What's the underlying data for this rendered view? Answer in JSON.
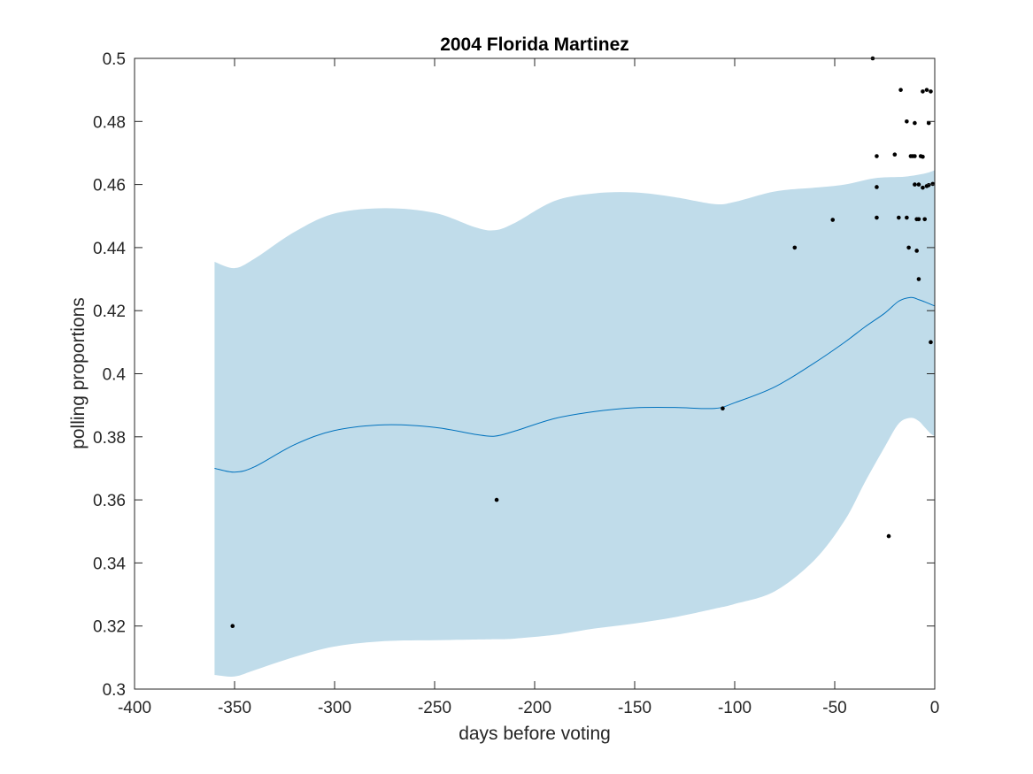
{
  "chart_data": {
    "type": "line",
    "title": "2004 Florida Martinez",
    "xlabel": "days before voting",
    "ylabel": "polling proportions",
    "xlim": [
      -400,
      0
    ],
    "ylim": [
      0.3,
      0.5
    ],
    "xticks": [
      -400,
      -350,
      -300,
      -250,
      -200,
      -150,
      -100,
      -50,
      0
    ],
    "yticks": [
      0.3,
      0.32,
      0.34,
      0.36,
      0.38,
      0.4,
      0.42,
      0.44,
      0.46,
      0.48,
      0.5
    ],
    "xtick_labels": [
      "-400",
      "-350",
      "-300",
      "-250",
      "-200",
      "-150",
      "-100",
      "-50",
      "0"
    ],
    "ytick_labels": [
      "0.3",
      "0.32",
      "0.34",
      "0.36",
      "0.38",
      "0.4",
      "0.42",
      "0.44",
      "0.46",
      "0.48",
      "0.5"
    ],
    "grid": false,
    "colors": {
      "mean": "#0072BD",
      "band": "#C0DCEA",
      "points": "#000000",
      "axes": "#262626"
    },
    "mean": {
      "x": [
        -360,
        -350,
        -340,
        -320,
        -300,
        -275,
        -250,
        -230,
        -220,
        -210,
        -190,
        -170,
        -150,
        -130,
        -110,
        -100,
        -80,
        -60,
        -45,
        -35,
        -25,
        -18,
        -12,
        -8,
        -5,
        -2,
        0
      ],
      "y": [
        0.37,
        0.3688,
        0.3705,
        0.3775,
        0.382,
        0.3838,
        0.383,
        0.3808,
        0.3802,
        0.3818,
        0.3858,
        0.388,
        0.3892,
        0.3893,
        0.389,
        0.3908,
        0.3958,
        0.4035,
        0.41,
        0.4148,
        0.4192,
        0.423,
        0.4242,
        0.4235,
        0.4228,
        0.422,
        0.4215
      ]
    },
    "band_upper": {
      "x": [
        -360,
        -350,
        -340,
        -320,
        -300,
        -275,
        -250,
        -230,
        -220,
        -210,
        -190,
        -170,
        -150,
        -130,
        -110,
        -100,
        -80,
        -60,
        -45,
        -30,
        -15,
        -5,
        0
      ],
      "y": [
        0.4355,
        0.4335,
        0.4365,
        0.445,
        0.4508,
        0.4525,
        0.451,
        0.4465,
        0.4455,
        0.4478,
        0.4548,
        0.4572,
        0.4575,
        0.456,
        0.4538,
        0.4545,
        0.4578,
        0.459,
        0.46,
        0.462,
        0.4625,
        0.4635,
        0.4645
      ]
    },
    "band_lower": {
      "x": [
        -360,
        -350,
        -340,
        -320,
        -300,
        -275,
        -250,
        -230,
        -220,
        -210,
        -190,
        -170,
        -150,
        -130,
        -110,
        -100,
        -80,
        -60,
        -45,
        -35,
        -25,
        -18,
        -12,
        -8,
        -5,
        -2,
        0
      ],
      "y": [
        0.3045,
        0.304,
        0.306,
        0.3102,
        0.3135,
        0.3152,
        0.3155,
        0.3157,
        0.3158,
        0.316,
        0.3172,
        0.3192,
        0.3208,
        0.3228,
        0.3255,
        0.327,
        0.331,
        0.341,
        0.3535,
        0.3655,
        0.3768,
        0.3842,
        0.386,
        0.385,
        0.383,
        0.381,
        0.3802
      ]
    },
    "points": [
      {
        "x": -351,
        "y": 0.32
      },
      {
        "x": -219,
        "y": 0.36
      },
      {
        "x": -106,
        "y": 0.389
      },
      {
        "x": -70,
        "y": 0.44
      },
      {
        "x": -51,
        "y": 0.4488
      },
      {
        "x": -31,
        "y": 0.5
      },
      {
        "x": -29,
        "y": 0.469
      },
      {
        "x": -29,
        "y": 0.4592
      },
      {
        "x": -29,
        "y": 0.4495
      },
      {
        "x": -23,
        "y": 0.3485
      },
      {
        "x": -20,
        "y": 0.4695
      },
      {
        "x": -18,
        "y": 0.4495
      },
      {
        "x": -17,
        "y": 0.49
      },
      {
        "x": -14,
        "y": 0.48
      },
      {
        "x": -14,
        "y": 0.4495
      },
      {
        "x": -13,
        "y": 0.44
      },
      {
        "x": -12,
        "y": 0.469
      },
      {
        "x": -11,
        "y": 0.469
      },
      {
        "x": -10,
        "y": 0.4795
      },
      {
        "x": -10,
        "y": 0.46
      },
      {
        "x": -10,
        "y": 0.469
      },
      {
        "x": -9,
        "y": 0.449
      },
      {
        "x": -9,
        "y": 0.439
      },
      {
        "x": -8,
        "y": 0.449
      },
      {
        "x": -8,
        "y": 0.46
      },
      {
        "x": -8,
        "y": 0.43
      },
      {
        "x": -7,
        "y": 0.469
      },
      {
        "x": -6,
        "y": 0.4895
      },
      {
        "x": -6,
        "y": 0.4688
      },
      {
        "x": -6,
        "y": 0.459
      },
      {
        "x": -5,
        "y": 0.449
      },
      {
        "x": -4,
        "y": 0.49
      },
      {
        "x": -4,
        "y": 0.4595
      },
      {
        "x": -3,
        "y": 0.4598
      },
      {
        "x": -3,
        "y": 0.4795
      },
      {
        "x": -2,
        "y": 0.4895
      },
      {
        "x": -2,
        "y": 0.41
      },
      {
        "x": -1,
        "y": 0.4602
      }
    ]
  }
}
